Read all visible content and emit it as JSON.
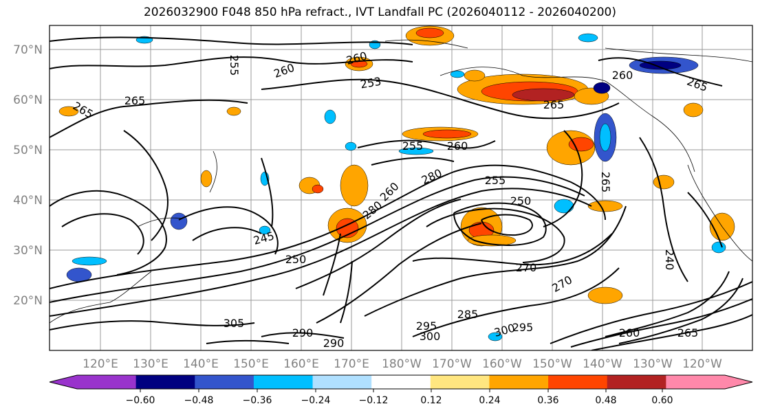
{
  "title": "2026032900 F048 850 hPa refract., IVT Landfall PC (2026040112 - 2026040200)",
  "map": {
    "lat_labels": [
      "70°N",
      "60°N",
      "50°N",
      "40°N",
      "30°N",
      "20°N"
    ],
    "lon_labels": [
      "120°E",
      "130°E",
      "140°E",
      "150°E",
      "160°E",
      "170°E",
      "180°W",
      "170°W",
      "160°W",
      "150°W",
      "140°W",
      "130°W",
      "120°W"
    ],
    "contour_labels": [
      "255",
      "260",
      "265",
      "253",
      "260",
      "265",
      "260",
      "265",
      "255",
      "260",
      "265",
      "270",
      "280",
      "250",
      "245",
      "250",
      "255",
      "260",
      "265",
      "270",
      "280",
      "285",
      "290",
      "295",
      "300",
      "305",
      "290",
      "295",
      "300",
      "240",
      "260",
      "265"
    ]
  },
  "colorbar": {
    "ticks": [
      "−0.60",
      "−0.48",
      "−0.36",
      "−0.24",
      "−0.12",
      "0.12",
      "0.24",
      "0.36",
      "0.48",
      "0.60"
    ],
    "colors": [
      "#9933cc",
      "#000080",
      "#3355cc",
      "#00bfff",
      "#b0e0ff",
      "#ffffff",
      "#ffe680",
      "#ffa500",
      "#ff4500",
      "#b22222",
      "#ff88aa",
      "#ff88aa"
    ]
  }
}
